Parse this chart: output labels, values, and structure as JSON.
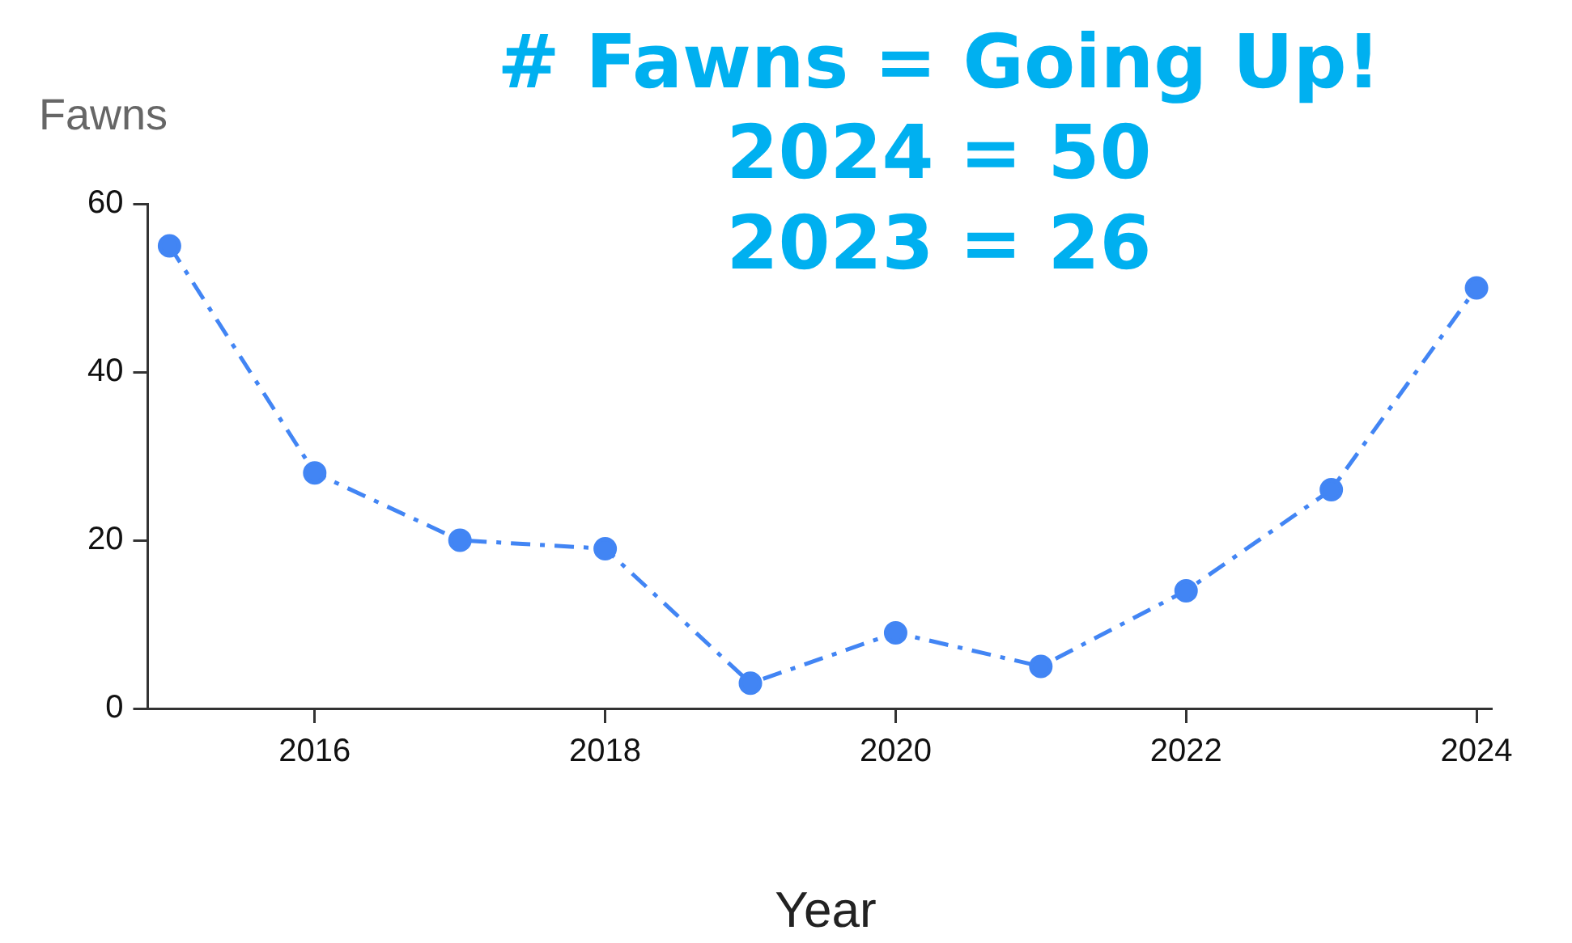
{
  "chart_data": {
    "type": "line",
    "title": "# Fawns = Going Up!",
    "annotations": [
      "2024 = 50",
      "2023 = 26"
    ],
    "xlabel": "Year",
    "ylabel": "Fawns",
    "x": [
      2015,
      2016,
      2017,
      2018,
      2019,
      2020,
      2021,
      2022,
      2023,
      2024
    ],
    "series": [
      {
        "color": "#4285f4",
        "values": [
          55,
          28,
          20,
          19,
          3,
          9,
          5,
          14,
          26,
          50
        ]
      }
    ],
    "xlim": [
      2014.85,
      2024.1
    ],
    "xticks": [
      2016,
      2018,
      2020,
      2022,
      2024
    ],
    "ylim": [
      0,
      60
    ],
    "yticks": [
      0,
      20,
      40,
      60
    ],
    "grid": false,
    "legend": false,
    "marker": "circle",
    "line_style": "dashed"
  }
}
